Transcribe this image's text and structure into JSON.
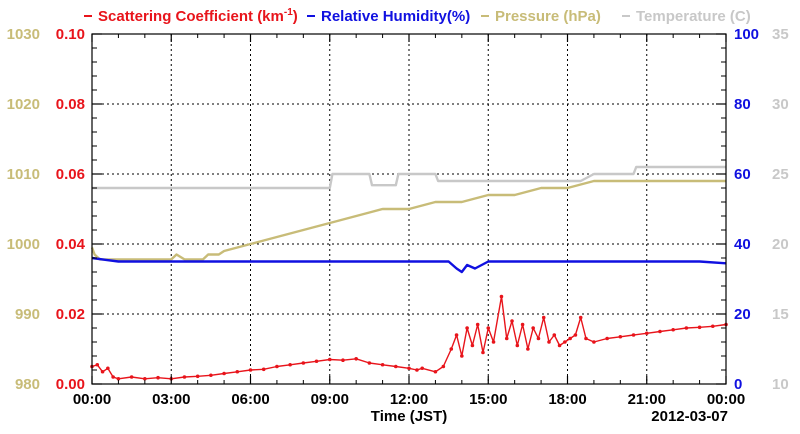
{
  "chart_data": {
    "type": "line",
    "legend": {
      "placement": "top",
      "entries": [
        {
          "label": "Scattering Coefficient (km",
          "sup": "-1",
          "tail": ")",
          "color": "#e8141b"
        },
        {
          "label": "Relative Humidity(%)",
          "color": "#1010e0"
        },
        {
          "label": "Pressure (hPa)",
          "color": "#c8bc78"
        },
        {
          "label": "Temperature (C)",
          "color": "#c8c8c8"
        }
      ]
    },
    "xlabel": "Time (JST)",
    "date_label": "2012-03-07",
    "x_ticks": [
      "00:00",
      "03:00",
      "06:00",
      "09:00",
      "12:00",
      "15:00",
      "18:00",
      "21:00",
      "00:00"
    ],
    "xlim_hours": [
      0,
      24
    ],
    "grid": true,
    "axes": {
      "scattering": {
        "side": "left-inner",
        "ylim": [
          0,
          0.1
        ],
        "ticks": [
          "0.00",
          "0.02",
          "0.04",
          "0.06",
          "0.08",
          "0.10"
        ],
        "color": "#e8141b"
      },
      "pressure": {
        "side": "left-outer",
        "ylim": [
          980,
          1030
        ],
        "ticks": [
          "980",
          "990",
          "1000",
          "1010",
          "1020",
          "1030"
        ],
        "color": "#c8bc78"
      },
      "humidity": {
        "side": "right-inner",
        "ylim": [
          0,
          100
        ],
        "ticks": [
          "0",
          "20",
          "40",
          "60",
          "80",
          "100"
        ],
        "color": "#1010e0"
      },
      "temperature": {
        "side": "right-outer",
        "ylim": [
          10,
          35
        ],
        "ticks": [
          "10",
          "15",
          "20",
          "25",
          "30",
          "35"
        ],
        "color": "#c8c8c8"
      }
    },
    "series": [
      {
        "name": "Scattering Coefficient (km-1)",
        "axis": "scattering",
        "color": "#e8141b",
        "points": [
          [
            0,
            0.005
          ],
          [
            0.2,
            0.0055
          ],
          [
            0.4,
            0.0035
          ],
          [
            0.6,
            0.0045
          ],
          [
            0.8,
            0.002
          ],
          [
            1,
            0.0015
          ],
          [
            1.5,
            0.002
          ],
          [
            2,
            0.0015
          ],
          [
            2.5,
            0.0018
          ],
          [
            3,
            0.0015
          ],
          [
            3.5,
            0.002
          ],
          [
            4,
            0.0022
          ],
          [
            4.5,
            0.0025
          ],
          [
            5,
            0.003
          ],
          [
            5.5,
            0.0035
          ],
          [
            6,
            0.004
          ],
          [
            6.5,
            0.0042
          ],
          [
            7,
            0.005
          ],
          [
            7.5,
            0.0055
          ],
          [
            8,
            0.006
          ],
          [
            8.5,
            0.0065
          ],
          [
            9,
            0.007
          ],
          [
            9.5,
            0.0068
          ],
          [
            10,
            0.0072
          ],
          [
            10.5,
            0.006
          ],
          [
            11,
            0.0055
          ],
          [
            11.5,
            0.005
          ],
          [
            12,
            0.0045
          ],
          [
            12.3,
            0.004
          ],
          [
            12.5,
            0.0045
          ],
          [
            13,
            0.0035
          ],
          [
            13.3,
            0.005
          ],
          [
            13.6,
            0.01
          ],
          [
            13.8,
            0.014
          ],
          [
            14,
            0.008
          ],
          [
            14.2,
            0.016
          ],
          [
            14.4,
            0.011
          ],
          [
            14.6,
            0.017
          ],
          [
            14.8,
            0.009
          ],
          [
            15,
            0.016
          ],
          [
            15.2,
            0.012
          ],
          [
            15.5,
            0.025
          ],
          [
            15.7,
            0.013
          ],
          [
            15.9,
            0.018
          ],
          [
            16.1,
            0.011
          ],
          [
            16.3,
            0.017
          ],
          [
            16.5,
            0.01
          ],
          [
            16.7,
            0.016
          ],
          [
            16.9,
            0.013
          ],
          [
            17.1,
            0.019
          ],
          [
            17.3,
            0.012
          ],
          [
            17.5,
            0.014
          ],
          [
            17.7,
            0.011
          ],
          [
            17.9,
            0.012
          ],
          [
            18.1,
            0.013
          ],
          [
            18.3,
            0.014
          ],
          [
            18.5,
            0.019
          ],
          [
            18.7,
            0.013
          ],
          [
            19,
            0.012
          ],
          [
            19.5,
            0.013
          ],
          [
            20,
            0.0135
          ],
          [
            20.5,
            0.014
          ],
          [
            21,
            0.0145
          ],
          [
            21.5,
            0.015
          ],
          [
            22,
            0.0155
          ],
          [
            22.5,
            0.016
          ],
          [
            23,
            0.0162
          ],
          [
            23.5,
            0.0165
          ],
          [
            24,
            0.017
          ]
        ]
      },
      {
        "name": "Relative Humidity(%)",
        "axis": "humidity",
        "color": "#1010e0",
        "points": [
          [
            0,
            36
          ],
          [
            0.5,
            35.5
          ],
          [
            1,
            35
          ],
          [
            2,
            35
          ],
          [
            3,
            35
          ],
          [
            4,
            35
          ],
          [
            5,
            35
          ],
          [
            6,
            35
          ],
          [
            7,
            35
          ],
          [
            8,
            35
          ],
          [
            9,
            35
          ],
          [
            10,
            35
          ],
          [
            11,
            35
          ],
          [
            12,
            35
          ],
          [
            13,
            35
          ],
          [
            13.5,
            35
          ],
          [
            13.8,
            33
          ],
          [
            14,
            32
          ],
          [
            14.2,
            34
          ],
          [
            14.5,
            33
          ],
          [
            15,
            35
          ],
          [
            16,
            35
          ],
          [
            17,
            35
          ],
          [
            18,
            35
          ],
          [
            19,
            35
          ],
          [
            20,
            35
          ],
          [
            21,
            35
          ],
          [
            22,
            35
          ],
          [
            23,
            35
          ],
          [
            24,
            34.5
          ]
        ]
      },
      {
        "name": "Pressure (hPa)",
        "axis": "pressure",
        "color": "#c8bc78",
        "points": [
          [
            0,
            999.5
          ],
          [
            0.1,
            998.5
          ],
          [
            0.3,
            997.8
          ],
          [
            3,
            997.8
          ],
          [
            3.2,
            998.5
          ],
          [
            3.5,
            997.8
          ],
          [
            4.2,
            997.8
          ],
          [
            4.4,
            998.5
          ],
          [
            4.8,
            998.5
          ],
          [
            5,
            999
          ],
          [
            5.5,
            999.5
          ],
          [
            6,
            1000
          ],
          [
            6.5,
            1000.5
          ],
          [
            7,
            1001
          ],
          [
            7.5,
            1001.5
          ],
          [
            8,
            1002
          ],
          [
            8.5,
            1002.5
          ],
          [
            9,
            1003
          ],
          [
            9.5,
            1003.5
          ],
          [
            10,
            1004
          ],
          [
            10.5,
            1004.5
          ],
          [
            11,
            1005
          ],
          [
            12,
            1005
          ],
          [
            12.5,
            1005.5
          ],
          [
            13,
            1006
          ],
          [
            14,
            1006
          ],
          [
            14.5,
            1006.5
          ],
          [
            15,
            1007
          ],
          [
            16,
            1007
          ],
          [
            16.5,
            1007.5
          ],
          [
            17,
            1008
          ],
          [
            18,
            1008
          ],
          [
            18.5,
            1008.5
          ],
          [
            19,
            1009
          ],
          [
            24,
            1009
          ]
        ]
      },
      {
        "name": "Temperature (C)",
        "axis": "temperature",
        "color": "#c8c8c8",
        "points": [
          [
            0,
            24
          ],
          [
            9,
            24
          ],
          [
            9.1,
            25
          ],
          [
            10.5,
            25
          ],
          [
            10.6,
            24.2
          ],
          [
            11.5,
            24.2
          ],
          [
            11.6,
            25
          ],
          [
            13,
            25
          ],
          [
            13.1,
            24.5
          ],
          [
            18.5,
            24.5
          ],
          [
            19,
            25
          ],
          [
            20.5,
            25
          ],
          [
            20.6,
            25.5
          ],
          [
            24,
            25.5
          ]
        ]
      }
    ]
  }
}
